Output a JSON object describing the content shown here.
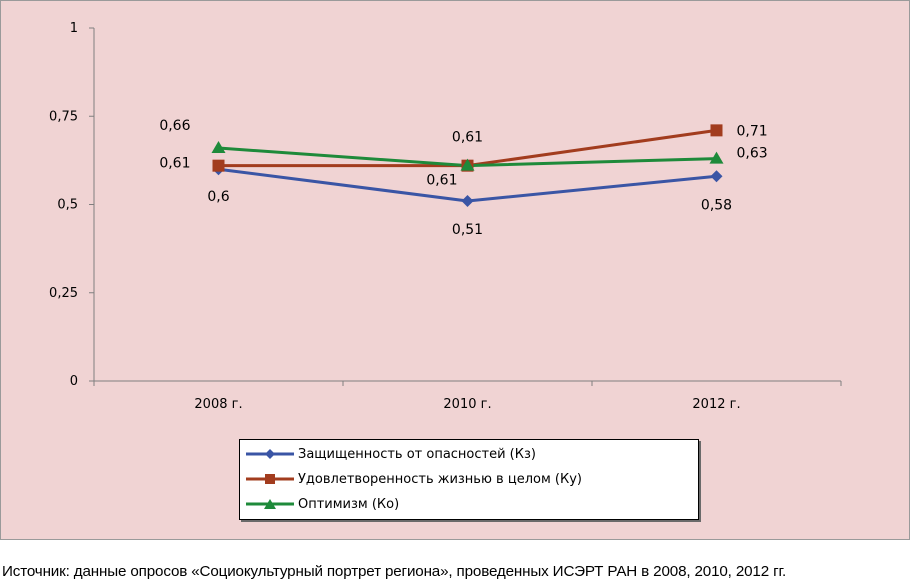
{
  "chart_data": {
    "type": "line",
    "categories": [
      "2008 г.",
      "2010 г.",
      "2012 г."
    ],
    "ylim": [
      0,
      1
    ],
    "yticks": [
      0,
      0.25,
      0.5,
      0.75,
      1
    ],
    "ytick_labels": [
      "0",
      "0,25",
      "0,5",
      "0,75",
      "1"
    ],
    "grid": false,
    "legend_position": "bottom-center",
    "series": [
      {
        "name": "Защищенность от опасностей (Кз)",
        "values": [
          0.6,
          0.51,
          0.58
        ],
        "labels": [
          "0,6",
          "0,51",
          "0,58"
        ],
        "color": "#3a55a5",
        "marker": "diamond"
      },
      {
        "name": "Удовлетворенность жизнью в целом (Ку)",
        "values": [
          0.61,
          0.61,
          0.71
        ],
        "labels": [
          "0,61",
          "0,61",
          "0,71"
        ],
        "color": "#a23c1e",
        "marker": "square"
      },
      {
        "name": "Оптимизм (Ко)",
        "values": [
          0.66,
          0.61,
          0.63
        ],
        "labels": [
          "0,66",
          "0,61",
          "0,63"
        ],
        "color": "#1e8a3a",
        "marker": "triangle"
      }
    ]
  },
  "source_note": "Источник: данные опросов «Социокультурный портрет региона», проведенных ИСЭРТ РАН в 2008, 2010, 2012 гг."
}
